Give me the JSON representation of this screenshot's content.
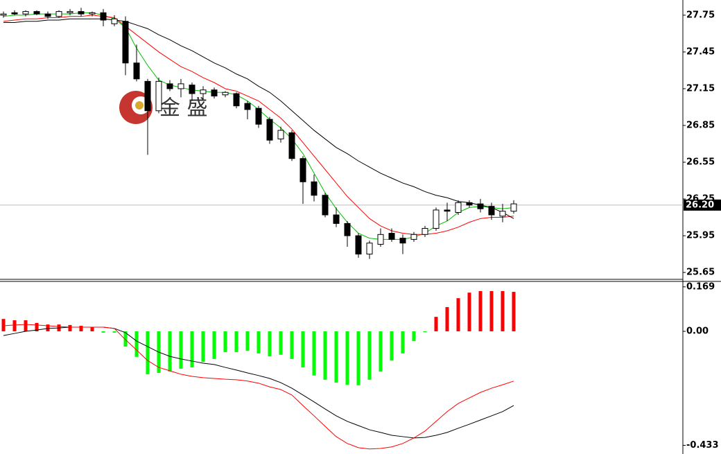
{
  "chart_data": [
    {
      "type": "candlestick",
      "open": [
        27.75,
        27.77,
        27.76,
        27.78,
        27.76,
        27.74,
        27.77,
        27.78,
        27.76,
        27.77,
        27.68,
        27.7,
        27.36,
        27.21,
        26.97,
        27.19,
        27.15,
        27.18,
        27.11,
        27.14,
        27.1,
        27.11,
        27.03,
        26.99,
        26.9,
        26.74,
        26.79,
        26.58,
        26.39,
        26.28,
        26.12,
        26.05,
        25.95,
        25.8,
        25.88,
        25.97,
        25.93,
        25.92,
        25.96,
        26.01,
        26.16,
        26.14,
        26.22,
        26.21,
        26.19,
        26.11,
        26.15
      ],
      "high": [
        27.78,
        27.79,
        27.79,
        27.79,
        27.78,
        27.79,
        27.8,
        27.81,
        27.78,
        27.8,
        27.75,
        27.74,
        27.51,
        27.23,
        27.24,
        27.22,
        27.23,
        27.2,
        27.17,
        27.16,
        27.13,
        27.12,
        27.05,
        27.01,
        26.92,
        26.84,
        26.81,
        26.6,
        26.45,
        26.3,
        26.18,
        26.07,
        25.97,
        25.91,
        26.01,
        26.01,
        25.96,
        25.98,
        26.03,
        26.18,
        26.22,
        26.24,
        26.24,
        26.25,
        26.22,
        26.21,
        26.24
      ],
      "low": [
        27.73,
        27.75,
        27.74,
        27.75,
        27.72,
        27.73,
        27.75,
        27.74,
        27.74,
        27.66,
        27.66,
        27.26,
        27.21,
        26.61,
        26.95,
        27.13,
        27.08,
        27.05,
        27.06,
        27.07,
        27.08,
        26.99,
        26.9,
        26.83,
        26.7,
        26.71,
        26.56,
        26.21,
        26.23,
        26.1,
        26.02,
        25.86,
        25.77,
        25.76,
        25.86,
        25.9,
        25.8,
        25.9,
        25.94,
        25.99,
        26.07,
        26.12,
        26.18,
        26.14,
        26.08,
        26.06,
        26.13
      ],
      "close": [
        27.76,
        27.76,
        27.78,
        27.76,
        27.74,
        27.78,
        27.78,
        27.76,
        27.77,
        27.71,
        27.72,
        27.36,
        27.23,
        26.97,
        27.21,
        27.15,
        27.19,
        27.11,
        27.14,
        27.09,
        27.12,
        27.01,
        26.98,
        26.86,
        26.73,
        26.81,
        26.58,
        26.39,
        26.28,
        26.12,
        26.05,
        25.95,
        25.8,
        25.89,
        25.96,
        25.92,
        25.89,
        25.96,
        26.01,
        26.16,
        26.15,
        26.22,
        26.2,
        26.17,
        26.12,
        26.15,
        26.21
      ],
      "lines": [
        {
          "color": "#00c000",
          "values": [
            27.74,
            27.75,
            27.75,
            27.76,
            27.76,
            27.76,
            27.76,
            27.77,
            27.77,
            27.75,
            27.72,
            27.65,
            27.48,
            27.34,
            27.22,
            27.18,
            27.16,
            27.14,
            27.13,
            27.12,
            27.12,
            27.1,
            27.05,
            26.98,
            26.9,
            26.83,
            26.74,
            26.62,
            26.46,
            26.3,
            26.17,
            26.06,
            25.97,
            25.93,
            25.92,
            25.92,
            25.92,
            25.94,
            25.97,
            26.03,
            26.07,
            26.14,
            26.18,
            26.19,
            26.18,
            26.17,
            26.18
          ]
        },
        {
          "color": "#ff0000",
          "values": [
            27.7,
            27.71,
            27.72,
            27.72,
            27.73,
            27.73,
            27.74,
            27.74,
            27.75,
            27.74,
            27.73,
            27.66,
            27.59,
            27.52,
            27.45,
            27.39,
            27.33,
            27.29,
            27.24,
            27.2,
            27.15,
            27.13,
            27.09,
            27.05,
            26.98,
            26.91,
            26.82,
            26.71,
            26.6,
            26.49,
            26.38,
            26.27,
            26.18,
            26.09,
            26.03,
            25.99,
            25.97,
            25.96,
            25.96,
            25.97,
            25.99,
            26.02,
            26.06,
            26.09,
            26.1,
            26.1,
            26.11
          ]
        },
        {
          "color": "#000000",
          "values": [
            27.69,
            27.69,
            27.7,
            27.7,
            27.71,
            27.71,
            27.72,
            27.72,
            27.72,
            27.72,
            27.71,
            27.7,
            27.67,
            27.64,
            27.59,
            27.55,
            27.5,
            27.46,
            27.41,
            27.36,
            27.32,
            27.27,
            27.23,
            27.17,
            27.12,
            27.05,
            26.97,
            26.89,
            26.81,
            26.74,
            26.67,
            26.62,
            26.56,
            26.51,
            26.46,
            26.42,
            26.38,
            26.35,
            26.31,
            26.28,
            26.26,
            26.23,
            26.22,
            26.2,
            26.18,
            26.14,
            26.09
          ]
        }
      ],
      "up_color": "#ffffff",
      "down_color": "#000000",
      "ylim": [
        25.594,
        27.874
      ],
      "yticks": [
        27.75,
        27.45,
        27.15,
        26.85,
        26.55,
        26.25,
        25.95,
        25.65
      ],
      "current_price": {
        "value": 26.2,
        "label": "26.20"
      },
      "watermark": "金 盛"
    },
    {
      "type": "macd",
      "values": [
        0.047,
        0.042,
        0.042,
        0.032,
        0.026,
        0.026,
        0.024,
        0.021,
        0.016,
        -0.005,
        -0.005,
        -0.058,
        -0.097,
        -0.163,
        -0.158,
        -0.153,
        -0.142,
        -0.137,
        -0.116,
        -0.105,
        -0.079,
        -0.079,
        -0.074,
        -0.084,
        -0.095,
        -0.089,
        -0.105,
        -0.137,
        -0.168,
        -0.184,
        -0.195,
        -0.203,
        -0.205,
        -0.184,
        -0.153,
        -0.111,
        -0.084,
        -0.037,
        -0.003,
        0.055,
        0.092,
        0.126,
        0.147,
        0.153,
        0.153,
        0.153,
        0.15
      ],
      "pos_color": "#ff0000",
      "neg_color": "#00ff00",
      "lines": [
        {
          "color": "#000000",
          "values": [
            -0.016,
            -0.008,
            0.0,
            0.005,
            0.011,
            0.013,
            0.016,
            0.016,
            0.016,
            0.016,
            0.011,
            -0.005,
            -0.037,
            -0.058,
            -0.079,
            -0.095,
            -0.105,
            -0.113,
            -0.121,
            -0.126,
            -0.137,
            -0.147,
            -0.158,
            -0.168,
            -0.179,
            -0.195,
            -0.216,
            -0.242,
            -0.268,
            -0.295,
            -0.321,
            -0.342,
            -0.358,
            -0.374,
            -0.384,
            -0.395,
            -0.4,
            -0.405,
            -0.403,
            -0.395,
            -0.384,
            -0.368,
            -0.353,
            -0.337,
            -0.321,
            -0.305,
            -0.282
          ]
        },
        {
          "color": "#ff0000",
          "values": [
            0.021,
            0.024,
            0.026,
            0.024,
            0.021,
            0.018,
            0.016,
            0.016,
            0.016,
            0.016,
            0.011,
            -0.032,
            -0.071,
            -0.111,
            -0.137,
            -0.15,
            -0.163,
            -0.171,
            -0.176,
            -0.179,
            -0.182,
            -0.184,
            -0.189,
            -0.197,
            -0.211,
            -0.221,
            -0.242,
            -0.282,
            -0.321,
            -0.361,
            -0.4,
            -0.426,
            -0.442,
            -0.447,
            -0.445,
            -0.439,
            -0.426,
            -0.405,
            -0.379,
            -0.342,
            -0.305,
            -0.274,
            -0.253,
            -0.232,
            -0.216,
            -0.203,
            -0.189
          ]
        }
      ],
      "ylim": [
        -0.466,
        0.187
      ],
      "yticks": [
        0.169,
        {
          "value": 0,
          "label": "0.00"
        },
        -0.433
      ]
    }
  ]
}
